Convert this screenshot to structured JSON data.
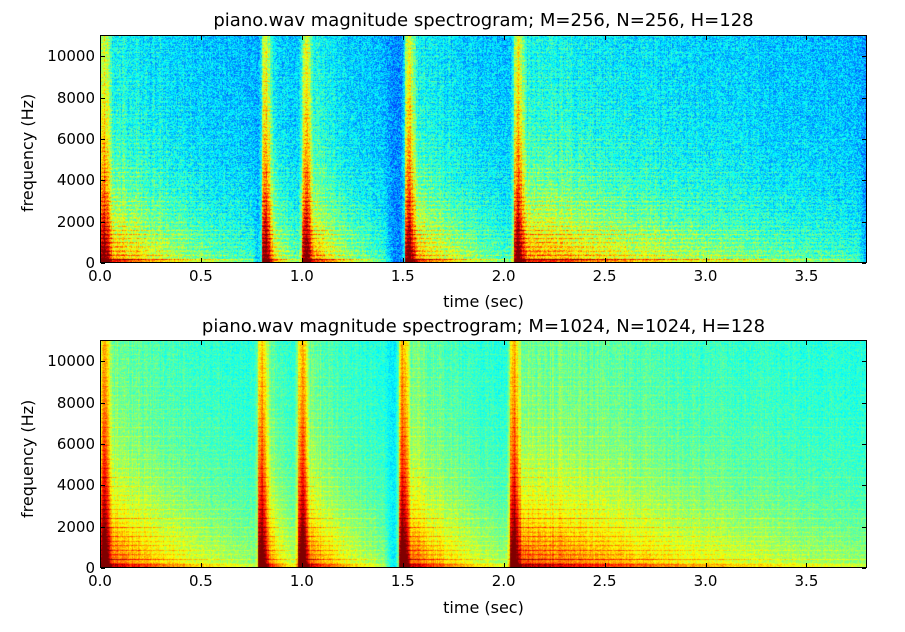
{
  "chart_data": [
    {
      "type": "heatmap",
      "title": "piano.wav magnitude spectrogram; M=256, N=256, H=128",
      "xlabel": "time (sec)",
      "ylabel": "frequency (Hz)",
      "xlim": [
        0.0,
        3.8
      ],
      "ylim": [
        0,
        11025
      ],
      "xticks": [
        "0.0",
        "0.5",
        "1.0",
        "1.5",
        "2.0",
        "2.5",
        "3.0",
        "3.5"
      ],
      "yticks": [
        "0",
        "2000",
        "4000",
        "6000",
        "8000",
        "10000"
      ],
      "colormap": "jet",
      "note_onsets_sec": [
        0.02,
        0.82,
        1.02,
        1.53,
        2.07
      ],
      "decay_ends_sec": [
        0.75,
        1.0,
        1.4,
        2.05,
        3.75
      ],
      "band_width_hz": 86
    },
    {
      "type": "heatmap",
      "title": "piano.wav magnitude spectrogram; M=1024, N=1024, H=128",
      "xlabel": "time (sec)",
      "ylabel": "frequency (Hz)",
      "xlim": [
        0.0,
        3.8
      ],
      "ylim": [
        0,
        11025
      ],
      "xticks": [
        "0.0",
        "0.5",
        "1.0",
        "1.5",
        "2.0",
        "2.5",
        "3.0",
        "3.5"
      ],
      "yticks": [
        "0",
        "2000",
        "4000",
        "6000",
        "8000",
        "10000"
      ],
      "colormap": "jet",
      "note_onsets_sec": [
        0.02,
        0.8,
        1.0,
        1.5,
        2.05
      ],
      "decay_ends_sec": [
        0.75,
        1.0,
        1.4,
        2.05,
        3.8
      ],
      "band_width_hz": 21.5
    }
  ]
}
